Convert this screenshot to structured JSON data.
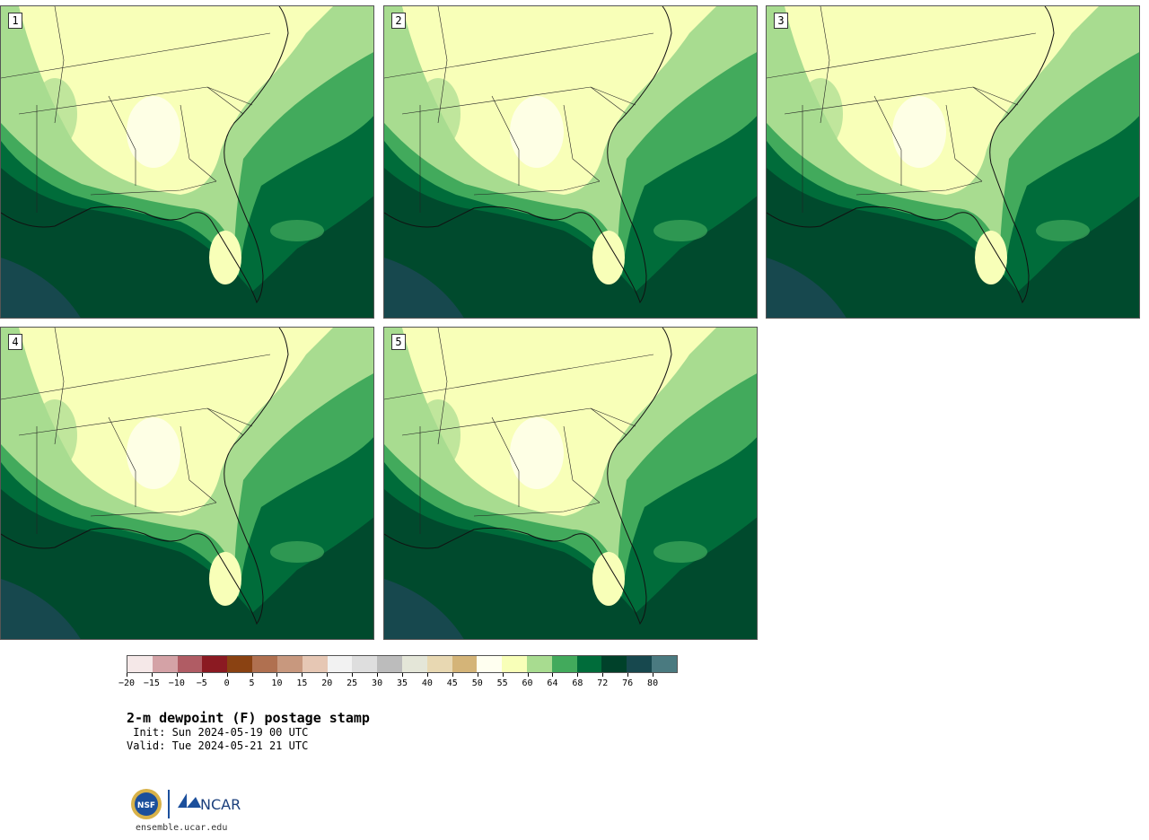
{
  "panels": [
    {
      "label": "1"
    },
    {
      "label": "2"
    },
    {
      "label": "3"
    },
    {
      "label": "4"
    },
    {
      "label": "5"
    }
  ],
  "colorbar": {
    "colors": [
      "#f5e8e8",
      "#d4a2a6",
      "#b05c64",
      "#8b1a22",
      "#8a4212",
      "#b07050",
      "#c8987e",
      "#e6c7b4",
      "#f2f2f2",
      "#dedede",
      "#bcbcbc",
      "#e4e6d8",
      "#e8d8b2",
      "#d4b478",
      "#fffff0",
      "#f8ffb8",
      "#a8dc90",
      "#42aa5c",
      "#006c3a",
      "#00412a",
      "#17484e",
      "#4a7a80"
    ],
    "ticks": [
      "−20",
      "−15",
      "−10",
      "−5",
      "0",
      "5",
      "10",
      "15",
      "20",
      "25",
      "30",
      "35",
      "40",
      "45",
      "50",
      "55",
      "60",
      "64",
      "68",
      "72",
      "76",
      "80"
    ]
  },
  "title": "2-m dewpoint (F) postage stamp",
  "init": " Init: Sun 2024-05-19 00 UTC",
  "valid": "Valid: Tue 2024-05-21 21 UTC",
  "logos": {
    "nsf": "NSF",
    "ncar": "NCAR"
  },
  "site": "ensemble.ucar.edu"
}
